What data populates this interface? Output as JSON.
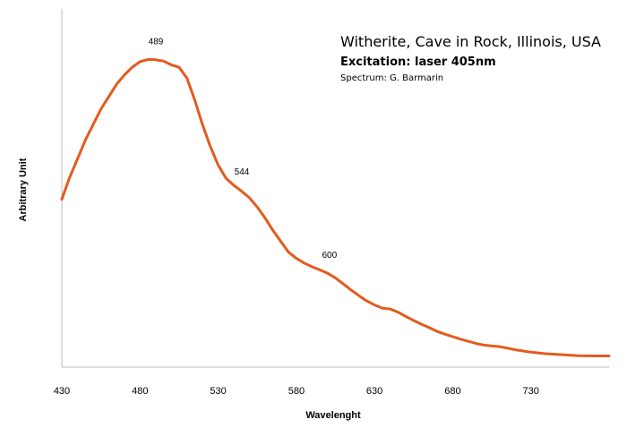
{
  "chart_data": {
    "type": "line",
    "title": "Witherite, Cave in Rock, Illinois, USA",
    "subtitle": "Excitation: laser 405nm",
    "credit": "Spectrum: G. Barmarin",
    "xlabel": "Wavelenght",
    "ylabel": "Arbitrary Unit",
    "xlim": [
      430,
      780
    ],
    "ylim": [
      0,
      100
    ],
    "xticks": [
      430,
      480,
      530,
      580,
      630,
      680,
      730
    ],
    "grid": false,
    "legend": "none",
    "series": [
      {
        "color": "#e35b1e",
        "x": [
          430,
          435,
          440,
          445,
          450,
          455,
          460,
          465,
          470,
          475,
          480,
          485,
          489,
          495,
          500,
          505,
          510,
          515,
          520,
          525,
          530,
          535,
          540,
          544,
          550,
          555,
          560,
          565,
          570,
          575,
          580,
          585,
          590,
          595,
          600,
          605,
          610,
          615,
          620,
          625,
          630,
          635,
          640,
          645,
          650,
          655,
          660,
          665,
          670,
          675,
          680,
          685,
          690,
          695,
          700,
          705,
          710,
          715,
          720,
          725,
          730,
          740,
          750,
          760,
          770,
          780
        ],
        "y": [
          54,
          61,
          67,
          73,
          78,
          83,
          87,
          91,
          94,
          96.5,
          98.3,
          99,
          99,
          98.5,
          97.3,
          96.5,
          93,
          86,
          78,
          71,
          65,
          60.8,
          58.5,
          57,
          54.5,
          51.5,
          48,
          44,
          40.5,
          37,
          35,
          33.5,
          32.3,
          31.3,
          30.2,
          28.7,
          26.8,
          24.8,
          23,
          21.3,
          20,
          19,
          18.7,
          17.7,
          16.3,
          15,
          13.8,
          12.7,
          11.5,
          10.6,
          9.8,
          9,
          8.3,
          7.6,
          7.1,
          6.8,
          6.6,
          6.1,
          5.6,
          5.2,
          4.8,
          4.3,
          4,
          3.7,
          3.6,
          3.6
        ]
      }
    ],
    "annotations": [
      {
        "text": "489",
        "x": 489,
        "y": 99
      },
      {
        "text": "544",
        "x": 544,
        "y": 57
      },
      {
        "text": "600",
        "x": 600,
        "y": 30.2
      }
    ]
  }
}
